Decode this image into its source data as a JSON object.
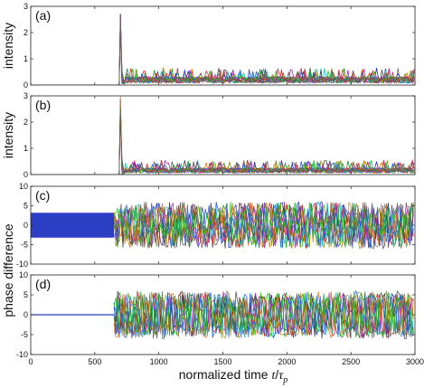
{
  "chart_data": [
    {
      "type": "line",
      "panel_label": "(a)",
      "ylabel": "intensity",
      "xlim": [
        0,
        3000
      ],
      "ylim": [
        0,
        3
      ],
      "yticks": [
        "0",
        "1",
        "2",
        "3"
      ],
      "xticks": [],
      "signal": {
        "kind": "intensity",
        "onset": 700,
        "spike_peak": 3.0,
        "baseline_before": 0.0,
        "steady_level": 0.25,
        "fluctuation_max": 0.65,
        "series_count": 12
      }
    },
    {
      "type": "line",
      "panel_label": "(b)",
      "ylabel": "intensity",
      "xlim": [
        0,
        3000
      ],
      "ylim": [
        0,
        3
      ],
      "yticks": [
        "0",
        "1",
        "2",
        "3"
      ],
      "xticks": [],
      "signal": {
        "kind": "intensity",
        "onset": 700,
        "spike_peak": 3.0,
        "baseline_before": 0.0,
        "steady_level": 0.2,
        "fluctuation_max": 0.55,
        "series_count": 12
      }
    },
    {
      "type": "line",
      "panel_label": "(c)",
      "ylabel": "phase difference",
      "xlim": [
        0,
        3000
      ],
      "ylim": [
        -10,
        10
      ],
      "yticks": [
        "-10",
        "-5",
        "0",
        "5",
        "10"
      ],
      "xticks": [],
      "signal": {
        "kind": "phase",
        "onset": 650,
        "band_before": [
          -3.2,
          3.2
        ],
        "range_after": [
          -6,
          6
        ],
        "series_count": 10
      }
    },
    {
      "type": "line",
      "panel_label": "(d)",
      "ylabel": "phase difference",
      "xlim": [
        0,
        3000
      ],
      "ylim": [
        -10,
        10
      ],
      "yticks": [
        "-10",
        "-5",
        "0",
        "5",
        "10"
      ],
      "xticks": [
        "0",
        "500",
        "1000",
        "1500",
        "2000",
        "2500",
        "3000"
      ],
      "signal": {
        "kind": "phase",
        "onset": 650,
        "band_before": [
          0,
          0
        ],
        "range_after": [
          -6,
          6
        ],
        "series_count": 10
      }
    }
  ],
  "xlabel": {
    "text": "normalized time ",
    "symbol_t": "t",
    "symbol_slash": "/",
    "symbol_tau": "τ",
    "symbol_sub": "p"
  },
  "series_colors": [
    "#1f1fbf",
    "#1a8f2a",
    "#d42020",
    "#18b8b8",
    "#b020b0",
    "#8a8a10",
    "#444444",
    "#e07810",
    "#2060e0",
    "#20c020",
    "#c03060",
    "#606060"
  ]
}
